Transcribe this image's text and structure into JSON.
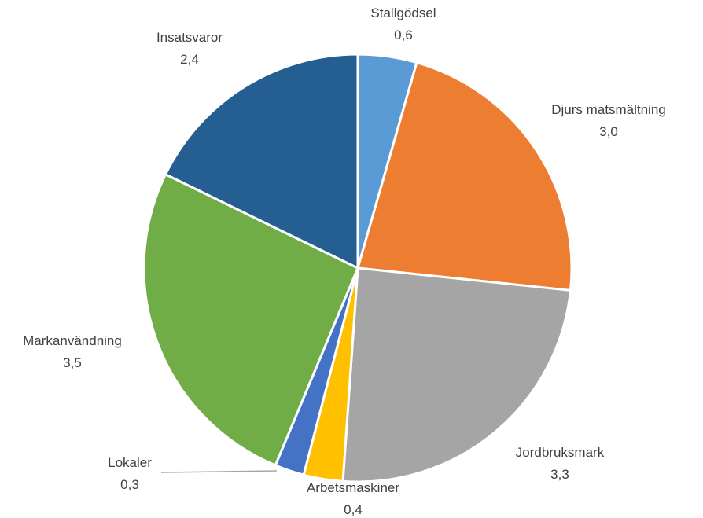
{
  "chart_data": {
    "type": "pie",
    "title": "",
    "decimal_separator": ",",
    "start_angle_deg": 0,
    "direction": "clockwise",
    "slices": [
      {
        "label": "Stallgödsel",
        "value": 0.6,
        "display": "0,6",
        "color": "#5B9BD5"
      },
      {
        "label": "Djurs matsmältning",
        "value": 3.0,
        "display": "3,0",
        "color": "#ED7D31"
      },
      {
        "label": "Jordbruksmark",
        "value": 3.3,
        "display": "3,3",
        "color": "#A5A5A5"
      },
      {
        "label": "Arbetsmaskiner",
        "value": 0.4,
        "display": "0,4",
        "color": "#FFC000"
      },
      {
        "label": "Lokaler",
        "value": 0.3,
        "display": "0,3",
        "color": "#4472C4"
      },
      {
        "label": "Markanvändning",
        "value": 3.5,
        "display": "3,5",
        "color": "#70AD47"
      },
      {
        "label": "Insatsvaror",
        "value": 2.4,
        "display": "2,4",
        "color": "#255E91"
      }
    ],
    "leader_line_color": "#A6A6A6",
    "label_color": "#404040"
  }
}
